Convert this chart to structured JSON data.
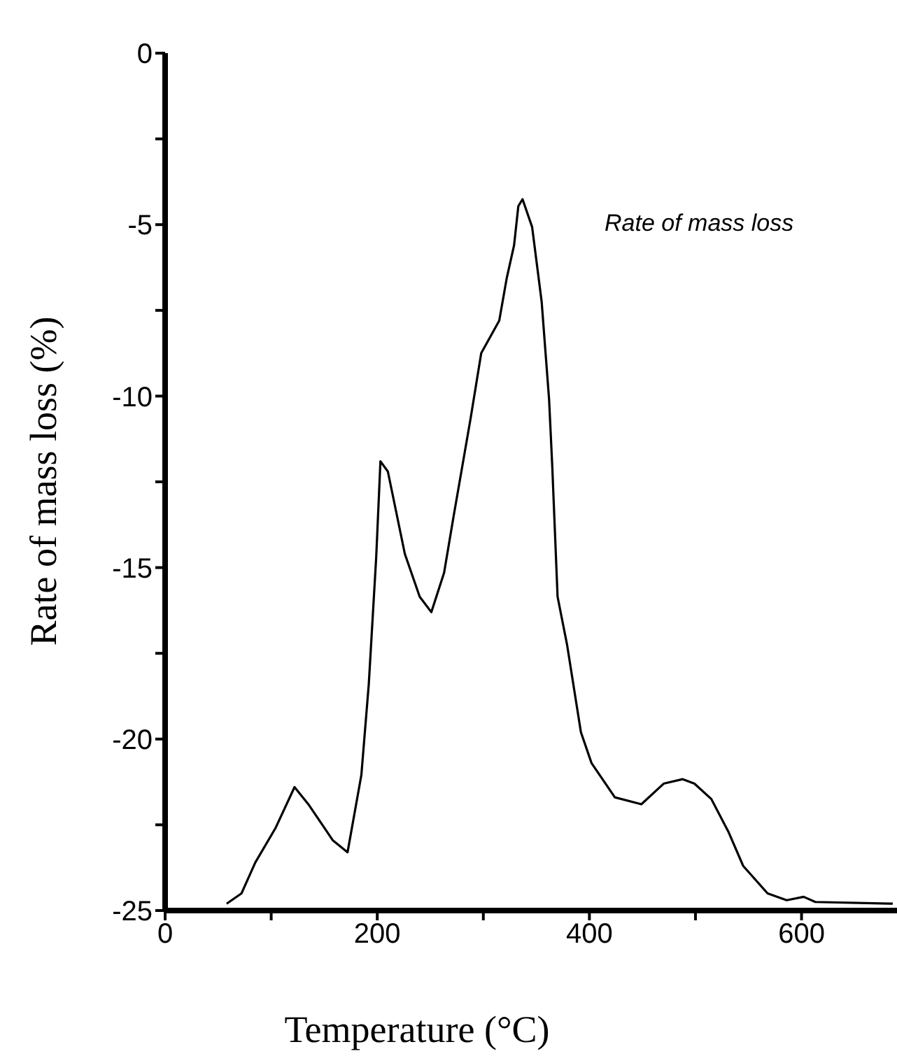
{
  "chart_data": {
    "type": "line",
    "xlabel": "Temperature (°C)",
    "ylabel": "Rate of mass loss (%)",
    "annotations": [
      "Rate of mass loss"
    ],
    "x": [
      58,
      72,
      85,
      104,
      122,
      135,
      158,
      172,
      185,
      192,
      199,
      203,
      210,
      226,
      240,
      251,
      263,
      272,
      281,
      288,
      293,
      298,
      315,
      322,
      329,
      333,
      337,
      346,
      355,
      362,
      365,
      370,
      379,
      392,
      402,
      424,
      449,
      470,
      488,
      499,
      515,
      531,
      545,
      568,
      586,
      602,
      613,
      686
    ],
    "series": [
      {
        "color": "#000000",
        "values": [
          -24.8,
          -24.5,
          -23.6,
          -22.6,
          -21.4,
          -21.9,
          -22.95,
          -23.3,
          -21.05,
          -18.4,
          -14.7,
          -11.9,
          -12.2,
          -14.6,
          -15.85,
          -16.3,
          -15.15,
          -13.5,
          -11.9,
          -10.65,
          -9.7,
          -8.75,
          -7.8,
          -6.57,
          -5.6,
          -4.46,
          -4.26,
          -5.07,
          -7.25,
          -10.1,
          -12.06,
          -15.85,
          -17.26,
          -19.8,
          -20.7,
          -21.7,
          -21.9,
          -21.3,
          -21.17,
          -21.3,
          -21.75,
          -22.7,
          -23.7,
          -24.5,
          -24.7,
          -24.6,
          -24.75,
          -24.8
        ]
      }
    ],
    "xlim": [
      0,
      690
    ],
    "xticks": [
      0,
      {
        "value": 100,
        "label": null
      },
      200,
      {
        "value": 300,
        "label": null
      },
      400,
      {
        "value": 500,
        "label": null
      },
      600
    ],
    "ylim": [
      -25,
      0
    ],
    "yticks": [
      -25,
      {
        "value": -22.5,
        "label": null
      },
      -20,
      {
        "value": -17.5,
        "label": null
      },
      -15,
      {
        "value": -12.5,
        "label": null
      },
      -10,
      {
        "value": -7.5,
        "label": null
      },
      -5,
      {
        "value": -2.5,
        "label": null
      },
      0
    ],
    "grid": false,
    "legend": false,
    "marker": "none",
    "line_style": "solid"
  }
}
